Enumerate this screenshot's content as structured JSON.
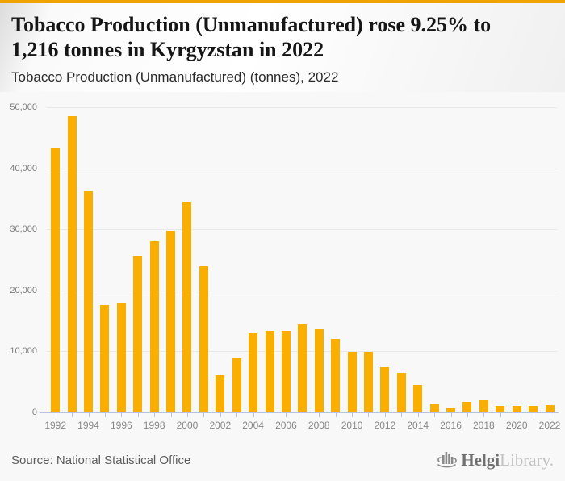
{
  "page": {
    "accent_color": "#efa400",
    "background_color": "#f8f8f8"
  },
  "header": {
    "title_line1": "Tobacco Production (Unmanufactured) rose 9.25% to",
    "title_line2": "1,216 tonnes in Kyrgyzstan in 2022",
    "subtitle": "Tobacco Production (Unmanufactured) (tonnes), 2022"
  },
  "chart_data": {
    "type": "bar",
    "title": "Tobacco Production (Unmanufactured) (tonnes), 2022",
    "categories": [
      1992,
      1993,
      1994,
      1995,
      1996,
      1997,
      1998,
      1999,
      2000,
      2001,
      2002,
      2003,
      2004,
      2005,
      2006,
      2007,
      2008,
      2009,
      2010,
      2011,
      2012,
      2013,
      2014,
      2015,
      2016,
      2017,
      2018,
      2019,
      2020,
      2021,
      2022
    ],
    "values": [
      43200,
      48500,
      36300,
      17600,
      17900,
      25600,
      28100,
      29800,
      34500,
      24000,
      6100,
      8800,
      12900,
      13300,
      13400,
      14400,
      13600,
      12100,
      9950,
      9950,
      7400,
      6500,
      4450,
      1400,
      650,
      1750,
      1950,
      1100,
      1000,
      1113,
      1216
    ],
    "xlabel": "",
    "ylabel": "",
    "ylim": [
      0,
      50000
    ],
    "ytick_step": 10000,
    "ytick_labels": [
      "0",
      "10,000",
      "20,000",
      "30,000",
      "40,000",
      "50,000"
    ],
    "xtick_label_every": 2,
    "grid": true,
    "legend": "none",
    "bar_color": "#faae00",
    "gridline_color": "#e8e8e8",
    "axis_color": "#b7c2dc"
  },
  "footer": {
    "source": "Source: National Statistical Office",
    "logo_bold": "Helgi",
    "logo_light": "Library.",
    "logo_icon": "bar-chart-flourish-icon"
  }
}
